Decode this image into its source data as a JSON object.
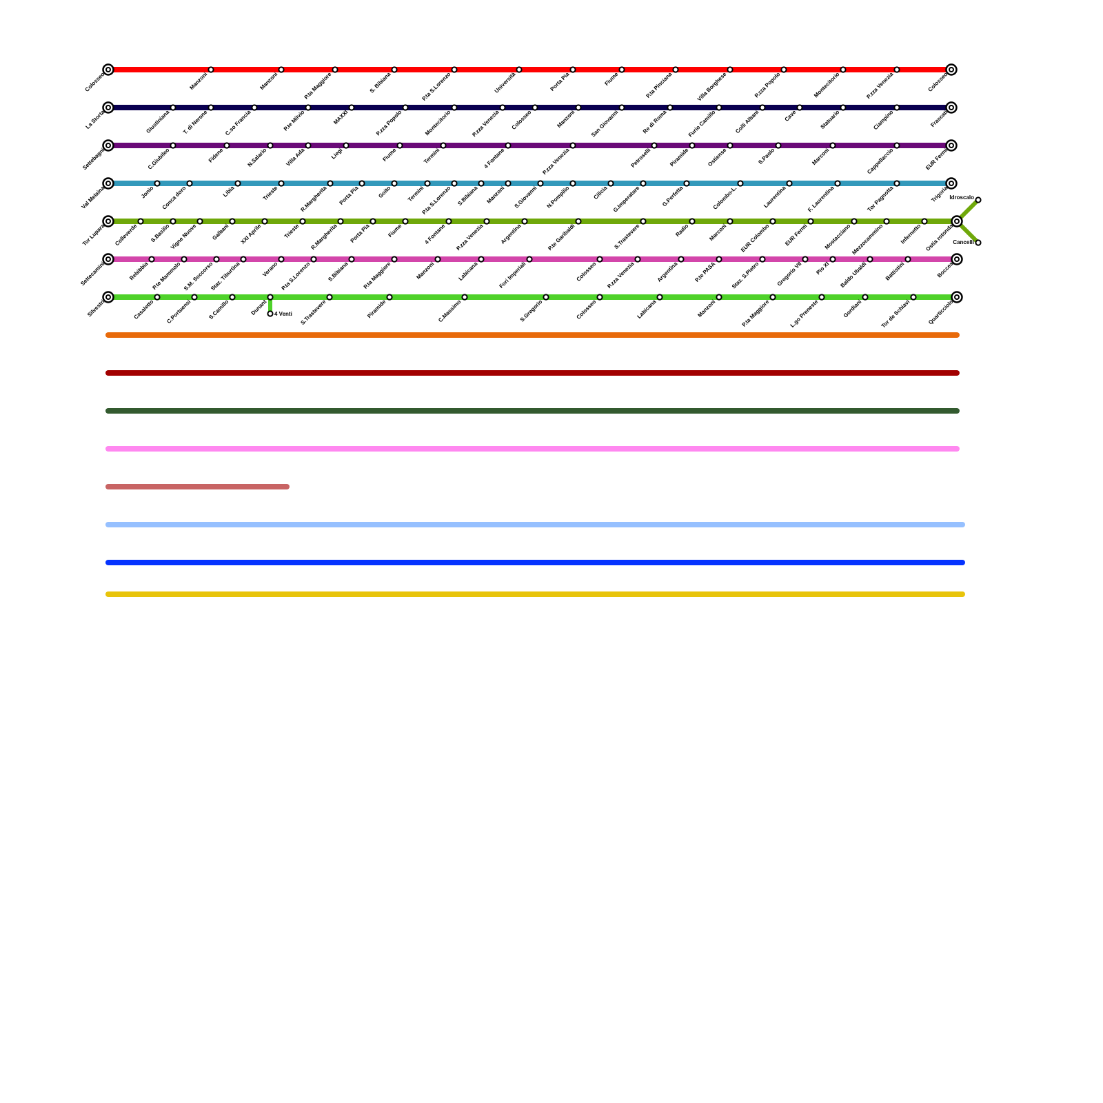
{
  "lines": [
    {
      "color": "#ff0000",
      "stations": [
        "Colosseo",
        "Manzoni",
        "Manzoni",
        "P.ta Maggiore",
        "S. Bibiana",
        "P.ta S.Lorenzo",
        "Università",
        "Porta Pia",
        "Fiume",
        "P.ta Pinciana",
        "Villa Borghese",
        "P.zza Popolo",
        "Montecitorio",
        "P.zza Venezia",
        "Colosseo"
      ]
    },
    {
      "color": "#0a0050",
      "stations": [
        "La Storta",
        "Giustiniana",
        "T. di Nerone",
        "C.so Francia",
        "P.te Milvio",
        "MAXXI",
        "P.zza Popolo",
        "Montecitorio",
        "P.zza Venezia",
        "Colosseo",
        "Manzoni",
        "San Giovanni",
        "Re di Roma",
        "Furio Camillo",
        "Colli Albani",
        "Cave",
        "Statuario",
        "Ciampino",
        "Frascati"
      ]
    },
    {
      "color": "#6a0a78",
      "stations": [
        "Settebagni",
        "C.Giubileo",
        "Fidene",
        "N.Salario",
        "Villa Ada",
        "Liegi",
        "Fiume",
        "Termini",
        "4 Fontane",
        "P.zza Venezia",
        "Petroselli",
        "Piramide",
        "Ostiense",
        "S.Paolo",
        "Marconi",
        "Cappellaccio",
        "EUR Fermi"
      ]
    },
    {
      "color": "#3399bb",
      "stations": [
        "Val Melaina",
        "Jonio",
        "Conca doro",
        "Libia",
        "Trieste",
        "R.Margherita",
        "Porta Pia",
        "Goito",
        "Termini",
        "P.ta S.Lorenzo",
        "S.Bibiana",
        "Manzoni",
        "S.Giovanni",
        "N.Pompilio",
        "Cilicia",
        "G.Imperatore",
        "G.Perfetta",
        "Colombo-L.",
        "Laurentina",
        "F. Laurentina",
        "Tor Pagnotta",
        "Trigoria"
      ]
    },
    {
      "color": "#6fa80a",
      "stations": [
        "Tor Lupara",
        "Colleverde",
        "S.Basilio",
        "Vigne Nuove",
        "Galbani",
        "XXI Aprile",
        "Trieste",
        "R.Margherita",
        "Porta Pia",
        "Fiume",
        "4 Fontane",
        "P.zza Venezia",
        "Argentina",
        "P.te Garibaldi",
        "S.Trastevere",
        "Radio",
        "Marconi",
        "EUR Colombo",
        "EUR Fermi",
        "Mostacciano",
        "Mezzocammino",
        "Infernetto",
        "Ostia rotonda"
      ],
      "branches": [
        "Idroscalo",
        "Cancelli"
      ]
    },
    {
      "color": "#d346aa",
      "stations": [
        "Settecamini",
        "Rebibbia",
        "P.te Mammolo",
        "S.M. Soccorso",
        "Staz. Tiburtina",
        "Verano",
        "P.ta S.Lorenzo",
        "S.Bibiana",
        "P.ta Maggiore",
        "Manzoni",
        "Labicana",
        "Fori Imperiali",
        "Colosseo",
        "P.zza Venezia",
        "Argentina",
        "P.te PASA",
        "Staz. S.Pietro",
        "Gregorio VII",
        "Pio XI",
        "Baldo Ubaldi",
        "Battistini",
        "Boccea"
      ]
    },
    {
      "color": "#4fd22a",
      "stations": [
        "Silvestri",
        "Casaletto",
        "C.Portuensi",
        "S.Camillo",
        "Dunant",
        "S.Trastevere",
        "Piramide",
        "C.Massimo",
        "S.Gregorio",
        "Colosseo",
        "Labicana",
        "Manzoni",
        "P.ta Maggiore",
        "L.go Preneste",
        "Gordiani",
        "Tor de Schiavi",
        "Quarticciolo"
      ],
      "branches": [
        "4 Venti"
      ]
    }
  ],
  "empty_lines": [
    {
      "color": "#e86a0a"
    },
    {
      "color": "#a20000"
    },
    {
      "color": "#335a2f"
    },
    {
      "color": "#ff88f0"
    },
    {
      "color": "#c86464"
    },
    {
      "color": "#96c0ff"
    },
    {
      "color": "#0533ff"
    },
    {
      "color": "#e8c40a"
    }
  ]
}
